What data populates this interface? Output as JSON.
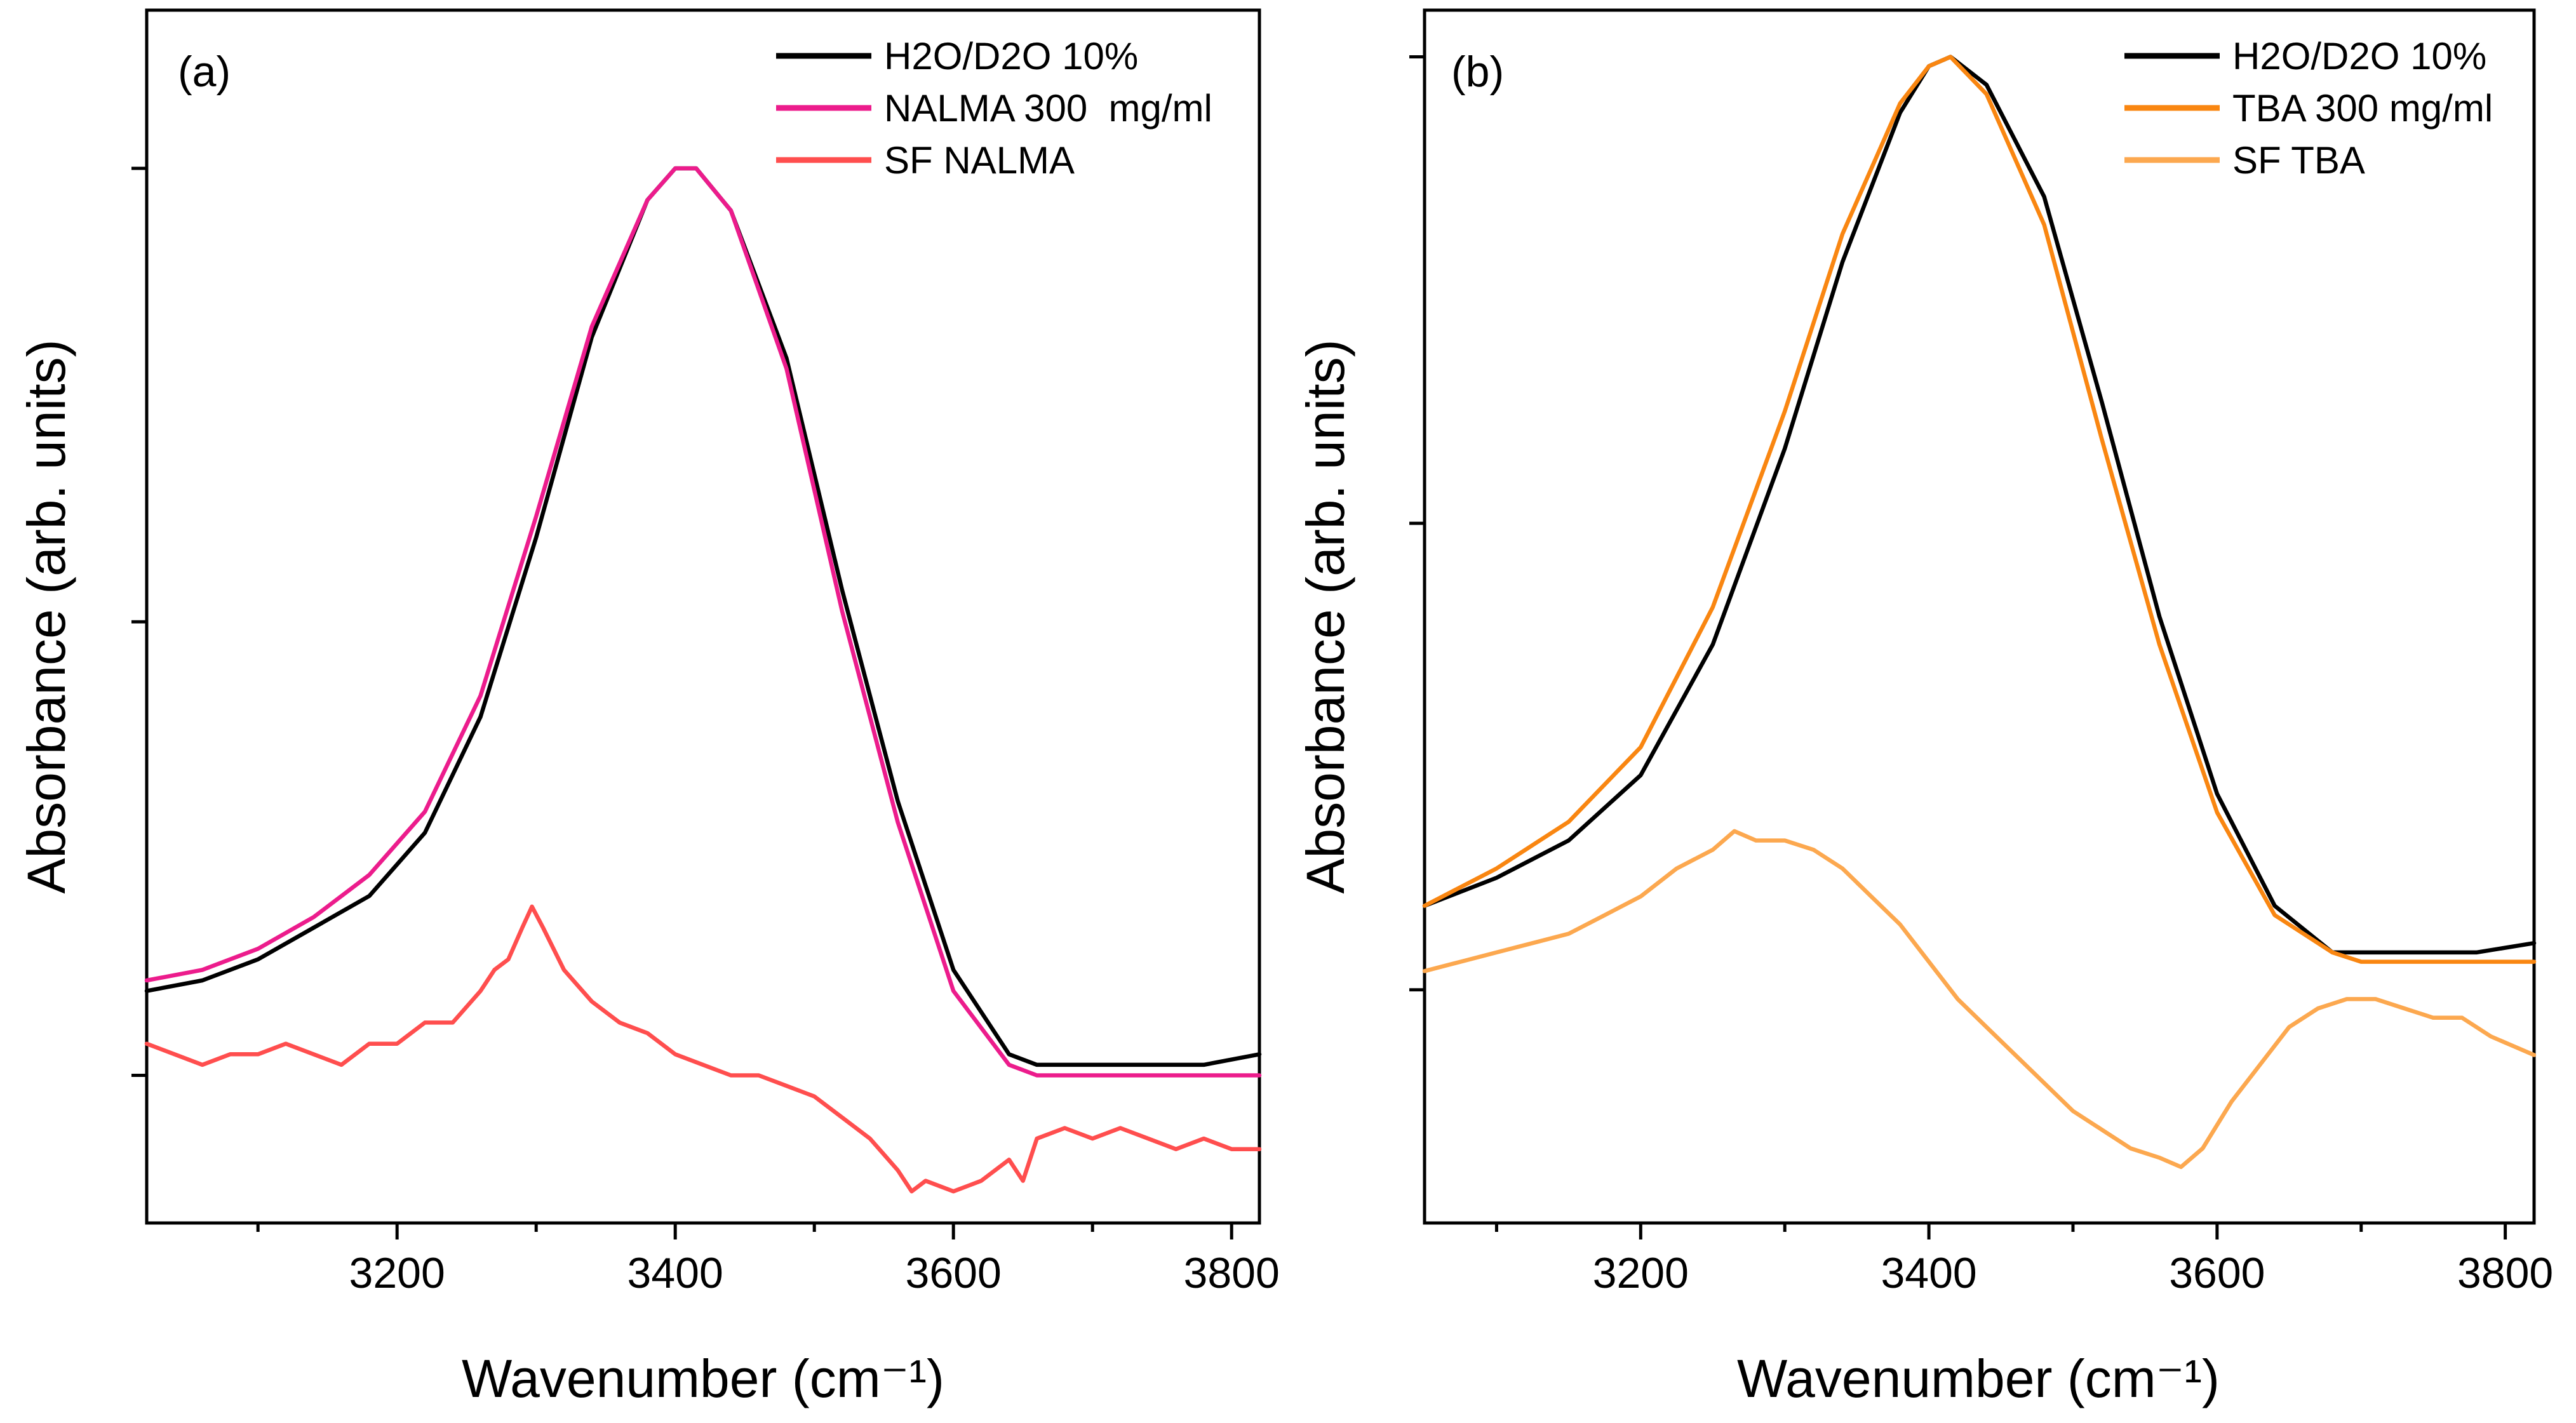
{
  "chart_data": [
    {
      "type": "line",
      "panel_label": "(a)",
      "xlabel": "Wavenumber (cm⁻¹)",
      "ylabel": "Absorbance (arb. units)",
      "xlim": [
        3020,
        3820
      ],
      "ylim": [
        0,
        1.15
      ],
      "x_ticks": [
        3200,
        3400,
        3600,
        3800
      ],
      "x_tick_labels": [
        "3200",
        "3400",
        "3600",
        "3800"
      ],
      "x_minor_ticks": [
        3100,
        3300,
        3500,
        3700
      ],
      "y_ticks": [
        0.14,
        0.57,
        1.0
      ],
      "y_tick_labels": [
        "",
        "",
        ""
      ],
      "legend_position": "top-right",
      "series": [
        {
          "name": "H2O/D2O 10%",
          "color": "#000000",
          "x": [
            3020,
            3060,
            3100,
            3140,
            3180,
            3220,
            3260,
            3300,
            3340,
            3380,
            3400,
            3415,
            3440,
            3480,
            3520,
            3560,
            3600,
            3640,
            3660,
            3700,
            3740,
            3780,
            3820
          ],
          "y": [
            0.22,
            0.23,
            0.25,
            0.28,
            0.31,
            0.37,
            0.48,
            0.65,
            0.84,
            0.97,
            1.0,
            1.0,
            0.96,
            0.82,
            0.6,
            0.4,
            0.24,
            0.16,
            0.15,
            0.15,
            0.15,
            0.15,
            0.16
          ]
        },
        {
          "name": "NALMA 300  mg/ml",
          "color": "#ec1c8c",
          "x": [
            3020,
            3060,
            3100,
            3140,
            3180,
            3220,
            3260,
            3300,
            3340,
            3380,
            3400,
            3415,
            3440,
            3480,
            3520,
            3560,
            3600,
            3640,
            3660,
            3700,
            3740,
            3780,
            3820
          ],
          "y": [
            0.23,
            0.24,
            0.26,
            0.29,
            0.33,
            0.39,
            0.5,
            0.67,
            0.85,
            0.97,
            1.0,
            1.0,
            0.96,
            0.81,
            0.58,
            0.38,
            0.22,
            0.15,
            0.14,
            0.14,
            0.14,
            0.14,
            0.14
          ]
        },
        {
          "name": "SF NALMA",
          "color": "#ff4e4e",
          "x": [
            3020,
            3040,
            3060,
            3080,
            3100,
            3120,
            3140,
            3160,
            3180,
            3200,
            3220,
            3240,
            3260,
            3270,
            3280,
            3290,
            3297,
            3305,
            3320,
            3340,
            3360,
            3380,
            3400,
            3420,
            3440,
            3460,
            3480,
            3500,
            3520,
            3540,
            3560,
            3570,
            3580,
            3600,
            3620,
            3640,
            3650,
            3660,
            3680,
            3700,
            3720,
            3740,
            3760,
            3780,
            3800,
            3820
          ],
          "y": [
            0.17,
            0.16,
            0.15,
            0.16,
            0.16,
            0.17,
            0.16,
            0.15,
            0.17,
            0.17,
            0.19,
            0.19,
            0.22,
            0.24,
            0.25,
            0.28,
            0.3,
            0.28,
            0.24,
            0.21,
            0.19,
            0.18,
            0.16,
            0.15,
            0.14,
            0.14,
            0.13,
            0.12,
            0.1,
            0.08,
            0.05,
            0.03,
            0.04,
            0.03,
            0.04,
            0.06,
            0.04,
            0.08,
            0.09,
            0.08,
            0.09,
            0.08,
            0.07,
            0.08,
            0.07,
            0.07
          ]
        }
      ]
    },
    {
      "type": "line",
      "panel_label": "(b)",
      "xlabel": "Wavenumber (cm⁻¹)",
      "ylabel": "Absorbance (arb. units)",
      "xlim": [
        3050,
        3820
      ],
      "ylim": [
        -0.25,
        1.05
      ],
      "x_ticks": [
        3200,
        3400,
        3600,
        3800
      ],
      "x_tick_labels": [
        "3200",
        "3400",
        "3600",
        "3800"
      ],
      "x_minor_ticks": [
        3100,
        3300,
        3500,
        3700
      ],
      "y_ticks": [
        0.0,
        0.5,
        1.0
      ],
      "y_tick_labels": [
        "",
        "",
        ""
      ],
      "legend_position": "top-right",
      "series": [
        {
          "name": "H2O/D2O 10%",
          "color": "#000000",
          "x": [
            3050,
            3100,
            3150,
            3200,
            3250,
            3300,
            3340,
            3380,
            3400,
            3415,
            3440,
            3480,
            3520,
            3560,
            3600,
            3640,
            3680,
            3700,
            3740,
            3780,
            3820
          ],
          "y": [
            0.09,
            0.12,
            0.16,
            0.23,
            0.37,
            0.58,
            0.78,
            0.94,
            0.99,
            1.0,
            0.97,
            0.85,
            0.63,
            0.4,
            0.21,
            0.09,
            0.04,
            0.04,
            0.04,
            0.04,
            0.05
          ]
        },
        {
          "name": "TBA 300 mg/ml",
          "color": "#f98611",
          "x": [
            3050,
            3100,
            3150,
            3200,
            3250,
            3300,
            3340,
            3380,
            3400,
            3415,
            3440,
            3480,
            3520,
            3560,
            3600,
            3640,
            3680,
            3700,
            3740,
            3780,
            3820
          ],
          "y": [
            0.09,
            0.13,
            0.18,
            0.26,
            0.41,
            0.62,
            0.81,
            0.95,
            0.99,
            1.0,
            0.96,
            0.82,
            0.59,
            0.37,
            0.19,
            0.08,
            0.04,
            0.03,
            0.03,
            0.03,
            0.03
          ]
        },
        {
          "name": "SF TBA",
          "color": "#fca84f",
          "x": [
            3050,
            3075,
            3100,
            3125,
            3150,
            3175,
            3200,
            3225,
            3250,
            3265,
            3280,
            3300,
            3320,
            3340,
            3360,
            3380,
            3400,
            3420,
            3440,
            3460,
            3480,
            3500,
            3520,
            3540,
            3560,
            3575,
            3590,
            3610,
            3630,
            3650,
            3670,
            3690,
            3710,
            3730,
            3750,
            3770,
            3790,
            3820
          ],
          "y": [
            0.02,
            0.03,
            0.04,
            0.05,
            0.06,
            0.08,
            0.1,
            0.13,
            0.15,
            0.17,
            0.16,
            0.16,
            0.15,
            0.13,
            0.1,
            0.07,
            0.03,
            -0.01,
            -0.04,
            -0.07,
            -0.1,
            -0.13,
            -0.15,
            -0.17,
            -0.18,
            -0.19,
            -0.17,
            -0.12,
            -0.08,
            -0.04,
            -0.02,
            -0.01,
            -0.01,
            -0.02,
            -0.03,
            -0.03,
            -0.05,
            -0.07
          ]
        }
      ]
    }
  ]
}
